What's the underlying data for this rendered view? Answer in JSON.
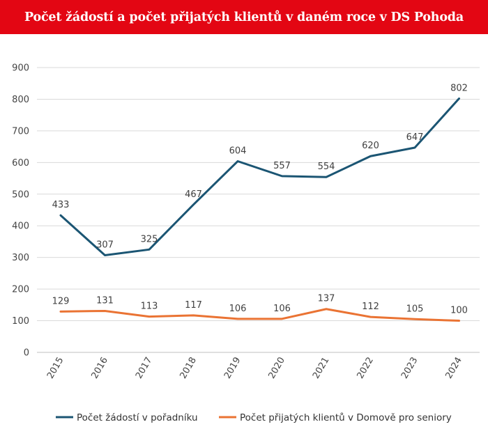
{
  "chart_data": {
    "type": "line",
    "title": "Počet žádostí a počet přijatých klientů v daném roce v DS Pohoda",
    "categories": [
      "2015",
      "2016",
      "2017",
      "2018",
      "2019",
      "2020",
      "2021",
      "2022",
      "2023",
      "2024"
    ],
    "series": [
      {
        "name": "Počet žádostí v pořadníku",
        "color": "#1b5573",
        "values": [
          433,
          307,
          325,
          467,
          604,
          557,
          554,
          620,
          647,
          802
        ]
      },
      {
        "name": "Počet přijatých klientů v Domově pro seniory",
        "color": "#ea7333",
        "values": [
          129,
          131,
          113,
          117,
          106,
          106,
          137,
          112,
          105,
          100
        ]
      }
    ],
    "ylim": [
      0,
      900
    ],
    "yticks": [
      0,
      100,
      200,
      300,
      400,
      500,
      600,
      700,
      800,
      900
    ],
    "grid": true,
    "legend_position": "bottom"
  },
  "colors": {
    "header_background": "#e30613",
    "grid": "#d9d9d9"
  }
}
